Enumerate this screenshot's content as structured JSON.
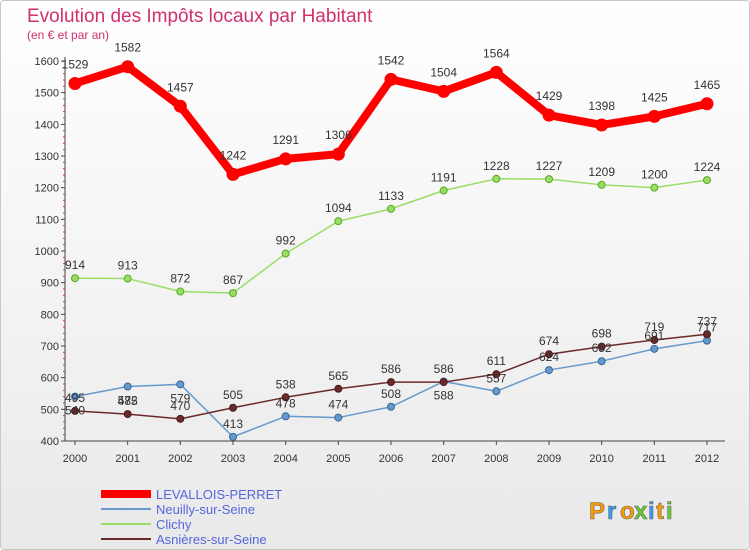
{
  "chart_data": {
    "type": "line",
    "title": "Evolution des Impôts locaux par Habitant",
    "subtitle": "(en € et par an)",
    "x": [
      "2000",
      "2001",
      "2002",
      "2003",
      "2004",
      "2005",
      "2006",
      "2007",
      "2008",
      "2009",
      "2010",
      "2011",
      "2012"
    ],
    "ylim": [
      400,
      1600
    ],
    "yticks": [
      400,
      500,
      600,
      700,
      800,
      900,
      1000,
      1100,
      1200,
      1300,
      1400,
      1500,
      1600
    ],
    "grid": false,
    "legend_position": "bottom-left",
    "series": [
      {
        "name": "LEVALLOIS-PERRET",
        "color": "#ff0000",
        "values": [
          1529,
          1582,
          1457,
          1242,
          1291,
          1306,
          1542,
          1504,
          1564,
          1429,
          1398,
          1425,
          1465
        ]
      },
      {
        "name": "Neuilly-sur-Seine",
        "color": "#6699cc",
        "values": [
          540,
          572,
          579,
          413,
          478,
          474,
          508,
          588,
          557,
          624,
          652,
          691,
          717
        ]
      },
      {
        "name": "Clichy",
        "color": "#99dd66",
        "values": [
          914,
          913,
          872,
          867,
          992,
          1094,
          1133,
          1191,
          1228,
          1227,
          1209,
          1200,
          1224
        ]
      },
      {
        "name": "Asnières-sur-Seine",
        "color": "#6b2a2a",
        "values": [
          495,
          485,
          470,
          505,
          538,
          565,
          586,
          586,
          611,
          674,
          698,
          719,
          737
        ]
      }
    ]
  },
  "brand": {
    "text": "Proxiti",
    "letters": [
      "P",
      "r",
      "o",
      "x",
      "i",
      "t",
      "i"
    ],
    "colors": [
      "#ff9900",
      "#3399ff",
      "#ff9900",
      "#66cc33",
      "#3399ff",
      "#ff9900",
      "#66cc33"
    ]
  }
}
